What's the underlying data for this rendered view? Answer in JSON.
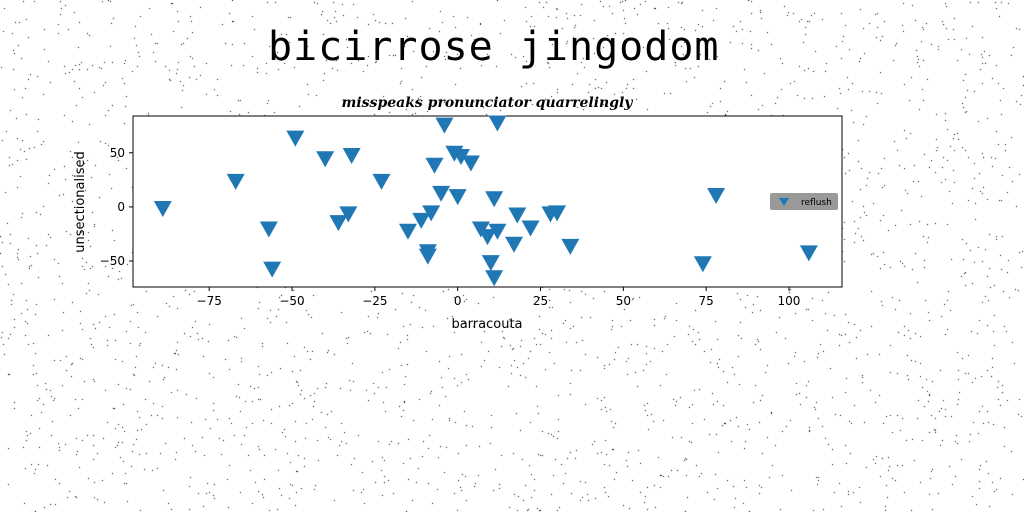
{
  "page": {
    "title": "bicirrose jingodom"
  },
  "colors": {
    "marker": "#1f77b4",
    "legend_bg": "#999999",
    "background": "#ffffff"
  },
  "chart_data": {
    "type": "scatter",
    "title": "misspeaks pronunciator quarrelingly",
    "xlabel": "barracouta",
    "ylabel": "unsectionalised",
    "xlim": [
      -98,
      116
    ],
    "ylim": [
      -74,
      84
    ],
    "xticks": [
      -75,
      -50,
      -25,
      0,
      25,
      50,
      75,
      100
    ],
    "yticks": [
      -50,
      0,
      50
    ],
    "grid": false,
    "legend_position": "center-right",
    "marker": "triangle-down",
    "series": [
      {
        "name": "reflush",
        "points": [
          [
            -89,
            -1
          ],
          [
            -67,
            24
          ],
          [
            -57,
            -20
          ],
          [
            -56,
            -57
          ],
          [
            -49,
            64
          ],
          [
            -40,
            45
          ],
          [
            -36,
            -14
          ],
          [
            -33,
            -6
          ],
          [
            -32,
            48
          ],
          [
            -23,
            24
          ],
          [
            -15,
            -22
          ],
          [
            -11,
            -12
          ],
          [
            -9,
            -41
          ],
          [
            -9,
            -45
          ],
          [
            -8,
            -5
          ],
          [
            -7,
            39
          ],
          [
            -5,
            13
          ],
          [
            -4,
            76
          ],
          [
            -1,
            50
          ],
          [
            0,
            10
          ],
          [
            1,
            47
          ],
          [
            4,
            41
          ],
          [
            7,
            -20
          ],
          [
            9,
            -27
          ],
          [
            10,
            -51
          ],
          [
            11,
            8
          ],
          [
            11,
            -65
          ],
          [
            12,
            -22
          ],
          [
            12,
            78
          ],
          [
            17,
            -34
          ],
          [
            18,
            -7
          ],
          [
            22,
            -19
          ],
          [
            28,
            -6
          ],
          [
            30,
            -5
          ],
          [
            34,
            -36
          ],
          [
            74,
            -52
          ],
          [
            78,
            11
          ],
          [
            106,
            -42
          ]
        ]
      }
    ]
  }
}
